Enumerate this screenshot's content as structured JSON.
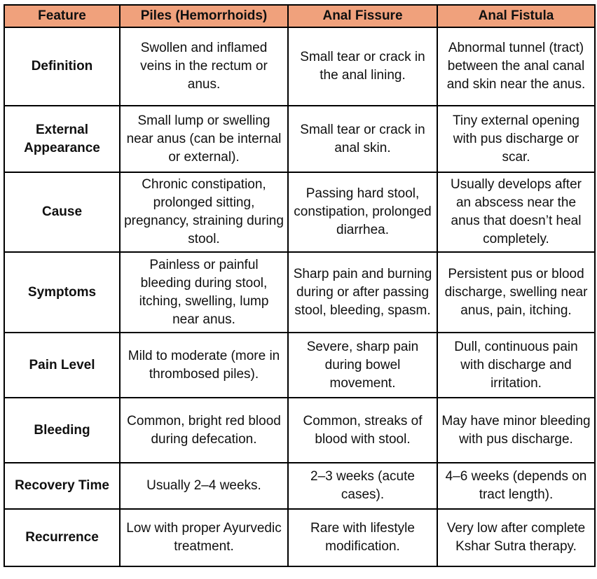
{
  "table": {
    "style": {
      "header_bg": "#F0A17C",
      "border_color": "#000000",
      "text_color": "#101010"
    },
    "headers": {
      "feature": "Feature",
      "piles": "Piles (Hemorrhoids)",
      "fissure": "Anal Fissure",
      "fistula": "Anal Fistula"
    },
    "rows": [
      {
        "feature": "Definition",
        "piles": "Swollen and inflamed veins in the rectum or anus.",
        "fissure": "Small tear or crack in the anal lining.",
        "fistula": "Abnormal tunnel (tract) between the anal canal and skin near the anus."
      },
      {
        "feature": "External Appearance",
        "piles": "Small lump or swelling near anus (can be internal or external).",
        "fissure": "Small tear or crack in anal skin.",
        "fistula": "Tiny external opening with pus discharge or scar."
      },
      {
        "feature": "Cause",
        "piles": "Chronic constipation, prolonged sitting, pregnancy, straining during stool.",
        "fissure": "Passing hard stool, constipation, prolonged diarrhea.",
        "fistula": "Usually develops after an abscess near the anus that doesn’t heal completely."
      },
      {
        "feature": "Symptoms",
        "piles": "Painless or painful bleeding during stool, itching, swelling, lump near anus.",
        "fissure": "Sharp pain and burning during or after passing stool, bleeding, spasm.",
        "fistula": "Persistent pus or blood discharge, swelling near anus, pain, itching."
      },
      {
        "feature": "Pain Level",
        "piles": "Mild to moderate (more in thrombosed piles).",
        "fissure": "Severe, sharp pain during bowel movement.",
        "fistula": "Dull, continuous pain with discharge and irritation."
      },
      {
        "feature": "Bleeding",
        "piles": "Common, bright red blood during defecation.",
        "fissure": "Common, streaks of blood with stool.",
        "fistula": "May have minor bleeding with pus discharge."
      },
      {
        "feature": "Recovery Time",
        "piles": "Usually 2–4 weeks.",
        "fissure": "2–3 weeks (acute cases).",
        "fistula": "4–6 weeks (depends on tract length)."
      },
      {
        "feature": "Recurrence",
        "piles": "Low with proper Ayurvedic treatment.",
        "fissure": "Rare with lifestyle modification.",
        "fistula": "Very low after complete Kshar Sutra therapy."
      }
    ]
  }
}
